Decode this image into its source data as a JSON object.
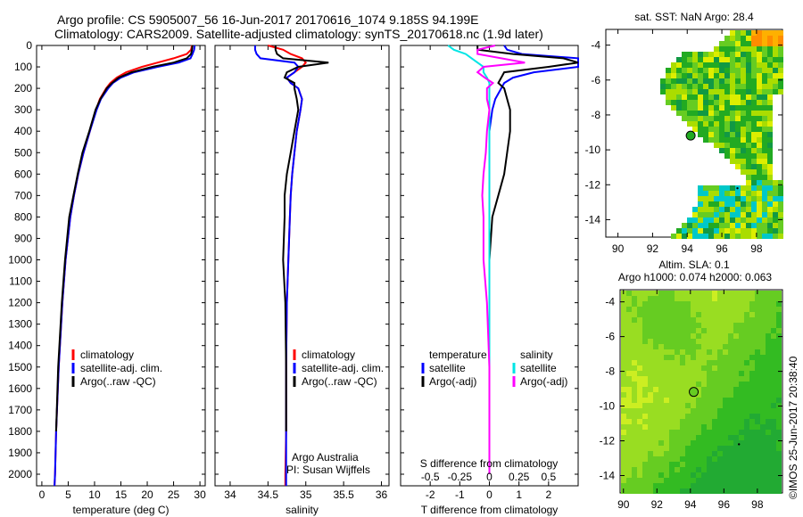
{
  "title_line1": "Argo profile: CS 5905007_56 16-Jun-2017 20170616_1074 9.185S 94.199E",
  "title_line2": "Climatology: CARS2009. Satellite-adjusted climatology: synTS_20170618.nc (1.9d later)",
  "credit": "©IMOS 25-Jun-2017 20:38:40",
  "colors": {
    "climatology": "#ff0000",
    "satellite": "#0000ff",
    "argo": "#000000",
    "sat_sal": "#00e5e5",
    "argo_sal": "#ff00ff"
  },
  "chart_data": [
    {
      "type": "line",
      "name": "temperature",
      "xlabel": "temperature (deg C)",
      "ylabel": "depth",
      "xlim": [
        -1,
        31
      ],
      "ylim": [
        2070,
        0
      ],
      "xticks": [
        "0",
        "5",
        "10",
        "15",
        "20",
        "25",
        "30"
      ],
      "xtick_values": [
        0,
        5,
        10,
        15,
        20,
        25,
        30
      ],
      "yticks": [
        "0",
        "100",
        "200",
        "300",
        "400",
        "500",
        "600",
        "700",
        "800",
        "900",
        "1000",
        "1100",
        "1200",
        "1300",
        "1400",
        "1500",
        "1600",
        "1700",
        "1800",
        "1900",
        "2000"
      ],
      "depth": [
        0,
        20,
        40,
        60,
        80,
        100,
        125,
        150,
        175,
        200,
        250,
        300,
        400,
        500,
        600,
        700,
        800,
        1000,
        1200,
        1500,
        1800,
        2000,
        2060
      ],
      "series": [
        {
          "name": "climatology",
          "values": [
            28.5,
            28.3,
            27.5,
            25,
            22,
            19,
            16,
            14.2,
            13,
            12.2,
            11,
            10.3,
            9.1,
            7.9,
            6.9,
            6.1,
            5.4,
            4.5,
            3.9,
            3.2,
            2.7,
            2.5,
            2.4
          ]
        },
        {
          "name": "satellite-adj. clim.",
          "values": [
            29,
            28.9,
            28.6,
            28.2,
            26,
            22,
            17.5,
            15,
            13.5,
            12.6,
            11.2,
            10.4,
            9.1,
            7.9,
            6.9,
            6.1,
            5.4,
            4.5,
            3.9,
            3.2,
            2.7,
            2.5,
            2.4
          ]
        },
        {
          "name": "Argo(..raw -QC)",
          "values": [
            28.6,
            28.5,
            28.3,
            27.5,
            25,
            21,
            17,
            14.6,
            13.3,
            12.3,
            11.1,
            10.2,
            9,
            7.7,
            6.8,
            6,
            5.2,
            4.4,
            3.8,
            3.1,
            2.7,
            null,
            null
          ]
        }
      ],
      "legend": [
        "climatology",
        "satellite-adj. clim.",
        "Argo(..raw -QC)"
      ]
    },
    {
      "type": "line",
      "name": "salinity",
      "xlabel": "salinity",
      "xlim": [
        33.8,
        36.1
      ],
      "ylim": [
        2070,
        0
      ],
      "xticks": [
        "34",
        "34.5",
        "35",
        "35.5",
        "36"
      ],
      "xtick_values": [
        34,
        34.5,
        35,
        35.5,
        36
      ],
      "depth": [
        0,
        20,
        40,
        60,
        80,
        100,
        125,
        150,
        175,
        200,
        250,
        300,
        400,
        500,
        600,
        700,
        800,
        1000,
        1200,
        1500,
        1800,
        2000,
        2060
      ],
      "series": [
        {
          "name": "climatology",
          "values": [
            34.5,
            34.7,
            34.8,
            34.95,
            35.0,
            34.95,
            34.85,
            34.75,
            34.8,
            34.9,
            34.95,
            34.93,
            34.88,
            34.85,
            34.82,
            34.8,
            34.79,
            34.77,
            34.75,
            34.74,
            34.74,
            34.73,
            34.73
          ]
        },
        {
          "name": "satellite-adj. clim.",
          "values": [
            34.33,
            34.33,
            34.35,
            34.4,
            34.85,
            34.9,
            34.85,
            34.75,
            34.8,
            34.9,
            34.95,
            34.93,
            34.88,
            34.85,
            34.82,
            34.8,
            34.79,
            34.77,
            34.75,
            34.74,
            34.74,
            34.74,
            34.74
          ]
        },
        {
          "name": "Argo(..raw -QC)",
          "values": [
            34.6,
            34.6,
            34.62,
            34.7,
            35.3,
            34.9,
            34.75,
            34.72,
            34.85,
            34.85,
            34.88,
            34.9,
            34.85,
            34.8,
            34.75,
            34.72,
            34.72,
            34.7,
            34.73,
            34.74,
            34.74,
            null,
            null
          ]
        }
      ],
      "legend": [
        "climatology",
        "satellite-adj. clim.",
        "Argo(..raw -QC)"
      ],
      "annotation": [
        "Argo Australia",
        "PI: Susan Wijffels"
      ]
    },
    {
      "type": "line",
      "name": "difference",
      "xlabel": "T difference from climatology",
      "x2label": "S difference from climatology",
      "xlim": [
        -3,
        3
      ],
      "x2lim": [
        -0.75,
        0.75
      ],
      "ylim": [
        2070,
        0
      ],
      "xticks": [
        "-2",
        "-1",
        "0",
        "1",
        "2"
      ],
      "xtick_values": [
        -2,
        -1,
        0,
        1,
        2
      ],
      "x2ticks": [
        "-0.5",
        "-0.25",
        "0",
        "0.25",
        "0.5"
      ],
      "x2tick_values": [
        -0.5,
        -0.25,
        0,
        0.25,
        0.5
      ],
      "depth": [
        0,
        20,
        40,
        60,
        80,
        100,
        125,
        150,
        175,
        200,
        250,
        300,
        400,
        500,
        600,
        700,
        800,
        1000,
        1200,
        1500,
        1800,
        2000
      ],
      "series": [
        {
          "name": "temperature satellite",
          "values": [
            0.5,
            0.6,
            1.1,
            3.2,
            4,
            3,
            1.5,
            0.8,
            0.5,
            0.4,
            0.2,
            0.1,
            0.0,
            0.0,
            0.0,
            0.0,
            0.0,
            0.0,
            0.0,
            0.0,
            0.0,
            0.0
          ]
        },
        {
          "name": "temperature Argo(-adj)",
          "values": [
            -0.4,
            -0.4,
            0.8,
            2.5,
            3,
            2,
            0.5,
            0.4,
            0.3,
            0.5,
            0.6,
            0.7,
            0.7,
            0.6,
            0.5,
            0.3,
            0.1,
            0.0,
            0.0,
            0.0,
            0.0,
            0.0
          ]
        },
        {
          "name": "salinity satellite",
          "values": [
            -0.35,
            -0.3,
            -0.2,
            -0.15,
            -0.1,
            -0.05,
            -0.05,
            -0.02,
            0,
            0,
            0,
            0,
            0,
            0,
            0,
            0,
            0,
            0,
            0,
            0,
            0,
            0
          ]
        },
        {
          "name": "salinity Argo(-adj)",
          "values": [
            0.05,
            -0.1,
            -0.1,
            0.1,
            0.3,
            -0.05,
            -0.1,
            -0.04,
            0.03,
            -0.02,
            -0.02,
            0,
            -0.02,
            -0.03,
            -0.05,
            -0.06,
            -0.05,
            -0.05,
            -0.02,
            0,
            0,
            0
          ]
        }
      ],
      "legend_left": {
        "title": "temperature",
        "items": [
          "satellite",
          "Argo(-adj)"
        ]
      },
      "legend_right": {
        "title": "salinity",
        "items": [
          "satellite",
          "Argo(-adj)"
        ]
      }
    },
    {
      "type": "heatmap",
      "name": "sst-map",
      "title": "sat. SST: NaN Argo: 28.4",
      "xlim": [
        89.3,
        99.5
      ],
      "ylim": [
        -15,
        -3.1
      ],
      "xticks": [
        "90",
        "92",
        "94",
        "96",
        "98"
      ],
      "xtick_values": [
        90,
        92,
        94,
        96,
        98
      ],
      "yticks": [
        "-4",
        "-6",
        "-8",
        "-10",
        "-12",
        "-14"
      ],
      "ytick_values": [
        -4,
        -6,
        -8,
        -10,
        -12,
        -14
      ],
      "argo_position": [
        94.199,
        -9.185
      ]
    },
    {
      "type": "heatmap",
      "name": "sla-map",
      "title": "Altim. SLA: 0.1",
      "subtitle": "Argo h1000: 0.074 h2000: 0.063",
      "xlim": [
        89.8,
        99.5
      ],
      "ylim": [
        -15,
        -3.3
      ],
      "xticks": [
        "90",
        "92",
        "94",
        "96",
        "98"
      ],
      "xtick_values": [
        90,
        92,
        94,
        96,
        98
      ],
      "yticks": [
        "-4",
        "-6",
        "-8",
        "-10",
        "-12",
        "-14"
      ],
      "ytick_values": [
        -4,
        -6,
        -8,
        -10,
        -12,
        -14
      ],
      "argo_position": [
        94.199,
        -9.185
      ]
    }
  ]
}
